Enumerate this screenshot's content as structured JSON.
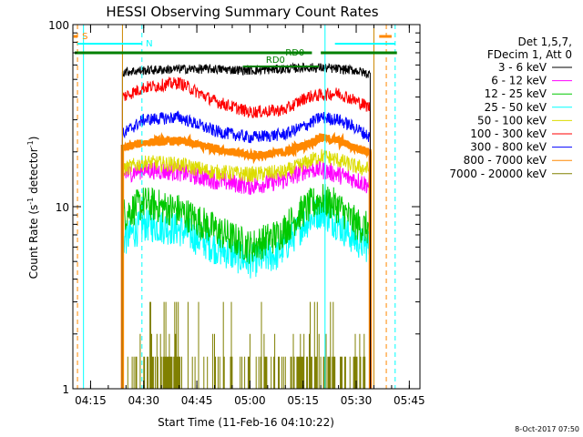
{
  "chart_data": {
    "type": "line",
    "title": "HESSI Observing Summary Count Rates",
    "xlabel": "Start Time (11-Feb-16 04:10:22)",
    "ylabel_main": "Count Rate (s",
    "ylabel_sup1": "-1",
    "ylabel_mid": " detector",
    "ylabel_sup2": "-1",
    "ylabel_end": ")",
    "y_scale": "log",
    "ylim": [
      1,
      100
    ],
    "xlim_minutes": [
      0,
      98
    ],
    "x_ticks": [
      "04:15",
      "04:30",
      "04:45",
      "05:00",
      "05:15",
      "05:30",
      "05:45"
    ],
    "y_ticks": [
      "1",
      "10",
      "100"
    ],
    "legend_header": [
      "Det 1,5,7,",
      "FDecim 1, Att 0"
    ],
    "legend_position": "top-right",
    "timestamp": "8-Oct-2017 07:50",
    "data_interval_minutes": [
      14,
      84
    ],
    "series": [
      {
        "name": "3 - 6 keV",
        "color": "#000000",
        "x": [
          14,
          20,
          30,
          40,
          50,
          60,
          65,
          70,
          75,
          80,
          84
        ],
        "values": [
          55,
          56,
          57,
          57,
          56,
          57,
          58,
          58,
          57,
          56,
          53
        ]
      },
      {
        "name": "6 - 12 keV",
        "color": "#ff00ff",
        "x": [
          14,
          20,
          30,
          40,
          50,
          60,
          66,
          70,
          75,
          80,
          84
        ],
        "values": [
          15,
          16,
          15.5,
          14,
          13,
          14,
          16,
          16,
          15,
          14,
          13
        ]
      },
      {
        "name": "12 - 25 keV",
        "color": "#00c800",
        "x": [
          14,
          20,
          30,
          40,
          50,
          58,
          65,
          70,
          75,
          80,
          84
        ],
        "values": [
          9,
          10.5,
          9.5,
          7.5,
          6,
          7,
          9.5,
          11,
          10,
          8,
          7.5
        ]
      },
      {
        "name": "25 - 50 keV",
        "color": "#00ffff",
        "x": [
          14,
          20,
          30,
          40,
          50,
          58,
          65,
          70,
          75,
          80,
          84
        ],
        "values": [
          6.5,
          8,
          7.5,
          6,
          5,
          5.5,
          8,
          9.5,
          8,
          6.5,
          6
        ]
      },
      {
        "name": "50 - 100 keV",
        "color": "#dcdc00",
        "x": [
          14,
          20,
          30,
          40,
          50,
          60,
          66,
          70,
          75,
          80,
          84
        ],
        "values": [
          16,
          17.5,
          17,
          15.5,
          15,
          15.5,
          17.5,
          19,
          18,
          16.5,
          16
        ]
      },
      {
        "name": "100 - 300 keV",
        "color": "#ff0000",
        "x": [
          14,
          20,
          30,
          40,
          50,
          60,
          66,
          70,
          75,
          80,
          84
        ],
        "values": [
          40,
          45,
          48,
          38,
          33,
          34,
          40,
          41,
          42,
          38,
          35
        ]
      },
      {
        "name": "300 - 800 keV",
        "color": "#0000ff",
        "x": [
          14,
          20,
          30,
          40,
          50,
          60,
          66,
          70,
          75,
          80,
          84
        ],
        "values": [
          25,
          30,
          31,
          26,
          24,
          25,
          28,
          31,
          30,
          27,
          24
        ]
      },
      {
        "name": "800 - 7000 keV",
        "color": "#ff8800",
        "x": [
          14,
          20,
          30,
          40,
          50,
          60,
          66,
          70,
          75,
          80,
          84
        ],
        "values": [
          21,
          22.5,
          23,
          21,
          19,
          20,
          22,
          24,
          23,
          21,
          20
        ]
      },
      {
        "name": "7000 - 20000 keV",
        "color": "#808000",
        "x": [
          14,
          84
        ],
        "values": [
          1.5,
          1.5
        ]
      }
    ],
    "annotations": [
      {
        "text": "S",
        "color": "#ff8800"
      },
      {
        "text": "N",
        "color": "#00ffff"
      },
      {
        "text": "RD0",
        "color": "#008000"
      },
      {
        "text": "RD0",
        "color": "#008000"
      }
    ]
  }
}
